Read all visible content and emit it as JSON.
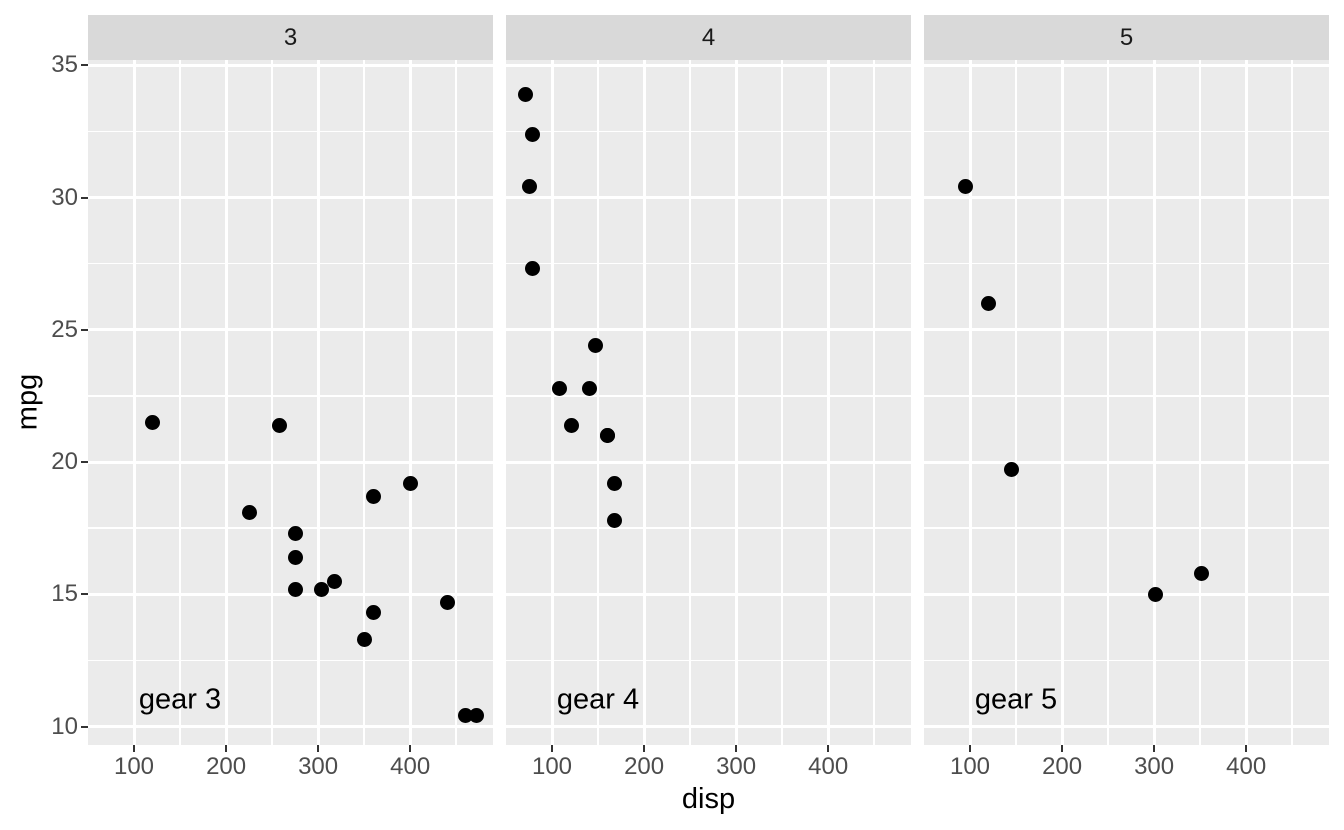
{
  "chart_data": {
    "type": "scatter",
    "title": "",
    "xlabel": "disp",
    "ylabel": "mpg",
    "legend": "none",
    "grid": "white major and minor gridlines on gray panels",
    "facet_variable_values": [
      "3",
      "4",
      "5"
    ],
    "xlim": [
      50,
      490
    ],
    "ylim": [
      9.3,
      35.2
    ],
    "x_ticks": [
      100,
      200,
      300,
      400
    ],
    "x_minor_ticks": [
      150,
      250,
      350,
      450
    ],
    "y_ticks": [
      35,
      30,
      25,
      20,
      15,
      10
    ],
    "y_minor_ticks": [
      32.5,
      27.5,
      22.5,
      17.5,
      12.5
    ],
    "annotation_anchor": {
      "x": 150,
      "y": 11
    },
    "facets": [
      {
        "strip_label": "3",
        "annotation_label": "gear 3",
        "points": [
          [
            120.1,
            21.5
          ],
          [
            225,
            18.1
          ],
          [
            258,
            21.4
          ],
          [
            275.8,
            16.4
          ],
          [
            275.8,
            17.3
          ],
          [
            275.8,
            15.2
          ],
          [
            304,
            15.2
          ],
          [
            318,
            15.5
          ],
          [
            350,
            13.3
          ],
          [
            360,
            18.7
          ],
          [
            360,
            14.3
          ],
          [
            400,
            19.2
          ],
          [
            440,
            14.7
          ],
          [
            460,
            10.4
          ],
          [
            472,
            10.4
          ]
        ]
      },
      {
        "strip_label": "4",
        "annotation_label": "gear 4",
        "points": [
          [
            71.1,
            33.9
          ],
          [
            75.7,
            30.4
          ],
          [
            78.7,
            32.4
          ],
          [
            79,
            27.3
          ],
          [
            108,
            22.8
          ],
          [
            121,
            21.4
          ],
          [
            140.8,
            22.8
          ],
          [
            146.7,
            24.4
          ],
          [
            160,
            21
          ],
          [
            160,
            21
          ],
          [
            167.6,
            19.2
          ],
          [
            167.6,
            17.8
          ]
        ]
      },
      {
        "strip_label": "5",
        "annotation_label": "gear 5",
        "points": [
          [
            95.1,
            30.4
          ],
          [
            120.3,
            26
          ],
          [
            145,
            19.7
          ],
          [
            301,
            15
          ],
          [
            351,
            15.8
          ]
        ]
      }
    ]
  },
  "colors": {
    "figure_background": "#FFFFFF",
    "panel_background": "#EBEBEB",
    "strip_background": "#D9D9D9",
    "gridline": "#FFFFFF",
    "point": "#000000",
    "tick_label": "#4D4D4D",
    "tick_mark": "#333333",
    "axis_title": "#000000",
    "strip_text": "#1A1A1A"
  }
}
